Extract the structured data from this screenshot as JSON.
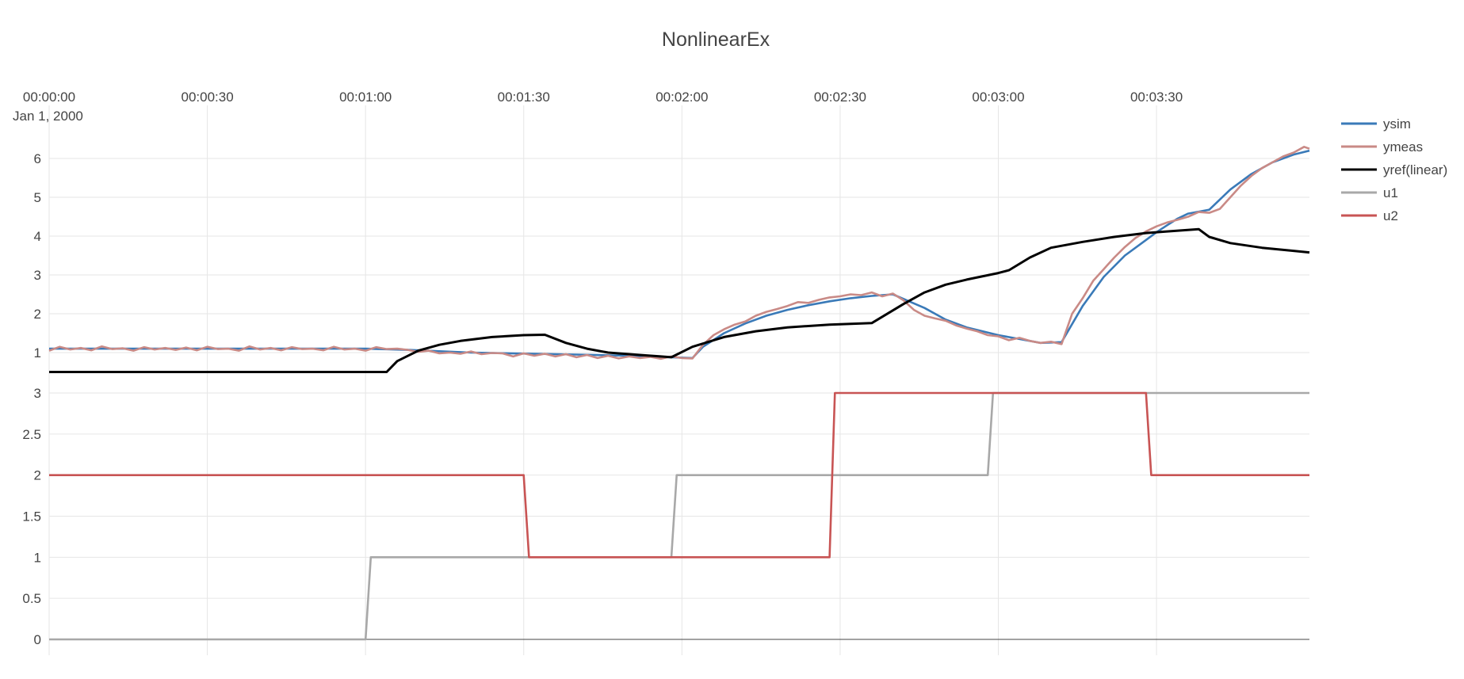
{
  "chart_data": {
    "type": "line",
    "title": "NonlinearEx",
    "x_axis": {
      "side": "top",
      "tick_labels": [
        "00:00:00",
        "00:00:30",
        "00:01:00",
        "00:01:30",
        "00:02:00",
        "00:02:30",
        "00:03:00",
        "00:03:30"
      ],
      "tick_values_s": [
        0,
        30,
        60,
        90,
        120,
        150,
        180,
        210
      ],
      "date_label": "Jan 1, 2000",
      "range_s": [
        0,
        239
      ]
    },
    "subplots": [
      {
        "name": "top",
        "y_ticks": [
          1,
          2,
          3,
          4,
          5,
          6
        ],
        "ylim": [
          0.45,
          6.55
        ],
        "series": [
          {
            "name": "ysim",
            "color": "#3a7ab8",
            "x": [
              0,
              40,
              60,
              68,
              80,
              100,
              110,
              120,
              122,
              124,
              128,
              132,
              136,
              140,
              144,
              148,
              152,
              156,
              160,
              166,
              170,
              174,
              180,
              184,
              186,
              188,
              192,
              196,
              200,
              204,
              208,
              210,
              212,
              214,
              216,
              220,
              224,
              228,
              232,
              236,
              239
            ],
            "y": [
              1.1,
              1.1,
              1.1,
              1.07,
              1.0,
              0.95,
              0.92,
              0.87,
              0.86,
              1.15,
              1.5,
              1.75,
              1.95,
              2.1,
              2.22,
              2.32,
              2.4,
              2.46,
              2.5,
              2.15,
              1.85,
              1.65,
              1.45,
              1.35,
              1.3,
              1.25,
              1.27,
              2.2,
              2.95,
              3.5,
              3.9,
              4.1,
              4.28,
              4.45,
              4.58,
              4.68,
              5.2,
              5.6,
              5.9,
              6.1,
              6.2
            ]
          },
          {
            "name": "ymeas",
            "color": "#c98a86",
            "x": [
              0,
              2,
              4,
              6,
              8,
              10,
              12,
              14,
              16,
              18,
              20,
              22,
              24,
              26,
              28,
              30,
              32,
              34,
              36,
              38,
              40,
              42,
              44,
              46,
              48,
              50,
              52,
              54,
              56,
              58,
              60,
              62,
              64,
              66,
              68,
              70,
              72,
              74,
              76,
              78,
              80,
              82,
              84,
              86,
              88,
              90,
              92,
              94,
              96,
              98,
              100,
              102,
              104,
              106,
              108,
              110,
              112,
              114,
              116,
              118,
              120,
              122,
              124,
              126,
              128,
              130,
              132,
              134,
              136,
              138,
              140,
              142,
              144,
              146,
              148,
              150,
              152,
              154,
              156,
              158,
              160,
              162,
              164,
              166,
              168,
              170,
              172,
              174,
              176,
              178,
              180,
              182,
              184,
              186,
              188,
              190,
              192,
              194,
              196,
              198,
              200,
              202,
              204,
              206,
              208,
              210,
              212,
              214,
              216,
              218,
              220,
              222,
              224,
              226,
              228,
              230,
              232,
              234,
              236,
              238,
              239
            ],
            "y": [
              1.05,
              1.15,
              1.08,
              1.12,
              1.06,
              1.16,
              1.09,
              1.11,
              1.05,
              1.14,
              1.08,
              1.12,
              1.07,
              1.13,
              1.06,
              1.15,
              1.09,
              1.1,
              1.05,
              1.16,
              1.08,
              1.12,
              1.06,
              1.14,
              1.09,
              1.1,
              1.06,
              1.15,
              1.08,
              1.1,
              1.05,
              1.14,
              1.09,
              1.1,
              1.07,
              1.02,
              1.05,
              0.98,
              1.0,
              0.97,
              1.03,
              0.96,
              0.99,
              0.98,
              0.9,
              0.98,
              0.92,
              0.97,
              0.9,
              0.96,
              0.88,
              0.94,
              0.86,
              0.92,
              0.85,
              0.9,
              0.86,
              0.89,
              0.84,
              0.9,
              0.86,
              0.85,
              1.2,
              1.45,
              1.6,
              1.72,
              1.8,
              1.95,
              2.05,
              2.12,
              2.2,
              2.3,
              2.28,
              2.36,
              2.42,
              2.45,
              2.5,
              2.48,
              2.55,
              2.45,
              2.52,
              2.35,
              2.1,
              1.95,
              1.88,
              1.82,
              1.7,
              1.62,
              1.55,
              1.45,
              1.42,
              1.32,
              1.38,
              1.3,
              1.25,
              1.28,
              1.22,
              2.0,
              2.4,
              2.85,
              3.15,
              3.45,
              3.72,
              3.95,
              4.12,
              4.25,
              4.35,
              4.42,
              4.5,
              4.62,
              4.6,
              4.7,
              5.0,
              5.3,
              5.55,
              5.75,
              5.9,
              6.05,
              6.15,
              6.3,
              6.25
            ]
          },
          {
            "name": "yref(linear)",
            "color": "#000000",
            "x": [
              0,
              64,
              66,
              70,
              74,
              78,
              84,
              90,
              94,
              98,
              102,
              106,
              112,
              116,
              118,
              122,
              128,
              134,
              140,
              148,
              156,
              162,
              166,
              170,
              174,
              180,
              182,
              186,
              190,
              196,
              202,
              208,
              212,
              218,
              220,
              224,
              230,
              236,
              239
            ],
            "y": [
              0.5,
              0.5,
              0.78,
              1.05,
              1.2,
              1.3,
              1.4,
              1.45,
              1.46,
              1.25,
              1.1,
              1.0,
              0.94,
              0.9,
              0.88,
              1.15,
              1.4,
              1.55,
              1.65,
              1.72,
              1.76,
              2.25,
              2.55,
              2.75,
              2.88,
              3.05,
              3.12,
              3.45,
              3.7,
              3.85,
              3.98,
              4.08,
              4.12,
              4.18,
              3.98,
              3.82,
              3.7,
              3.62,
              3.58
            ]
          }
        ]
      },
      {
        "name": "bottom",
        "y_ticks": [
          0,
          0.5,
          1,
          1.5,
          2,
          2.5,
          3
        ],
        "y_tick_labels": [
          "0",
          "0.5",
          "1",
          "1.5",
          "2",
          "2.5",
          "3"
        ],
        "ylim": [
          0,
          3
        ],
        "series": [
          {
            "name": "u1",
            "color": "#a8a8a8",
            "x": [
              0,
              60,
              61,
              118,
              119,
              178,
              179,
              239
            ],
            "y": [
              0,
              0,
              1,
              1,
              2,
              2,
              3,
              3
            ]
          },
          {
            "name": "u2",
            "color": "#c85454",
            "x": [
              0,
              90,
              91,
              148,
              149,
              208,
              209,
              239
            ],
            "y": [
              2,
              2,
              1,
              1,
              3,
              3,
              2,
              2
            ]
          }
        ]
      }
    ],
    "legend": {
      "position": "right",
      "items": [
        {
          "name": "ysim",
          "color": "#3a7ab8"
        },
        {
          "name": "ymeas",
          "color": "#c98a86"
        },
        {
          "name": "yref(linear)",
          "color": "#000000"
        },
        {
          "name": "u1",
          "color": "#a8a8a8"
        },
        {
          "name": "u2",
          "color": "#c85454"
        }
      ]
    },
    "grid": true
  }
}
